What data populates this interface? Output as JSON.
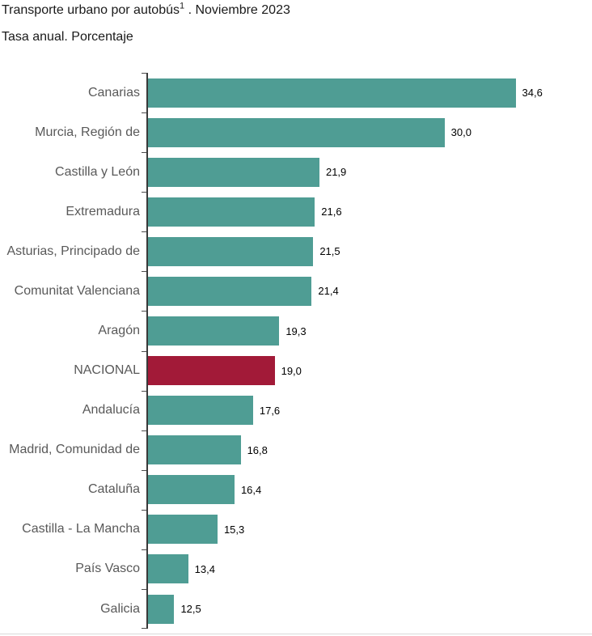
{
  "header": {
    "title_main": "Transporte urbano por autobús",
    "title_superscript": "1",
    "title_suffix": " . Noviembre 2023",
    "subtitle": "Tasa anual. Porcentaje"
  },
  "chart_data": {
    "type": "bar",
    "orientation": "horizontal",
    "title": "Transporte urbano por autobús¹ . Noviembre 2023",
    "subtitle": "Tasa anual. Porcentaje",
    "xlabel": "",
    "ylabel": "",
    "grid": false,
    "legend": false,
    "xlim": [
      10.8,
      39.6
    ],
    "categories": [
      "Canarias",
      "Murcia, Región de",
      "Castilla y León",
      "Extremadura",
      "Asturias, Principado de",
      "Comunitat Valenciana",
      "Aragón",
      "NACIONAL",
      "Andalucía",
      "Madrid, Comunidad de",
      "Cataluña",
      "Castilla - La Mancha",
      "País Vasco",
      "Galicia"
    ],
    "values": [
      34.6,
      30.0,
      21.9,
      21.6,
      21.5,
      21.4,
      19.3,
      19.0,
      17.6,
      16.8,
      16.4,
      15.3,
      13.4,
      12.5
    ],
    "value_labels": [
      "34,6",
      "30,0",
      "21,9",
      "21,6",
      "21,5",
      "21,4",
      "19,3",
      "19,0",
      "17,6",
      "16,8",
      "16,4",
      "15,3",
      "13,4",
      "12,5"
    ],
    "highlight_category": "NACIONAL",
    "colors": {
      "bar": "#4f9d94",
      "highlight": "#a21a38",
      "axis": "#3a3a3a",
      "category_label": "#595959",
      "value_label": "#000000"
    }
  }
}
